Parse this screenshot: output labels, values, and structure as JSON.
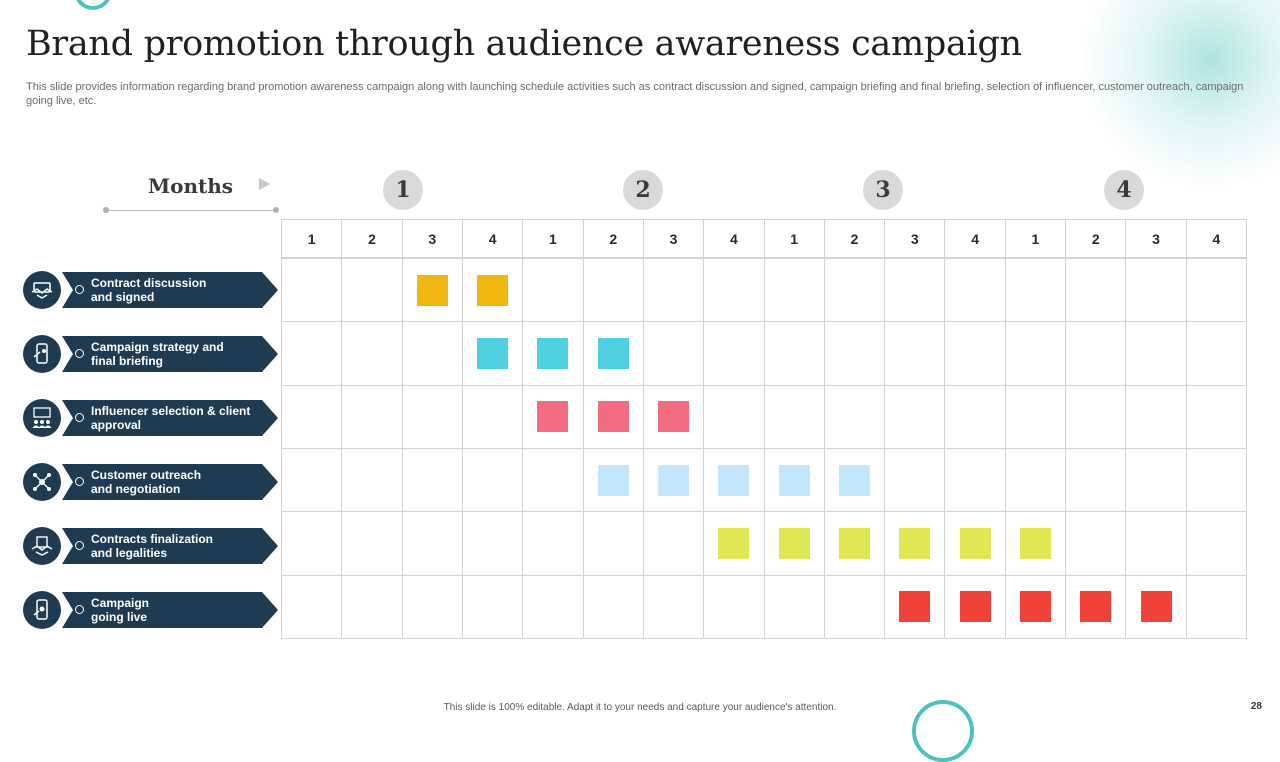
{
  "title": "Brand promotion through audience awareness campaign",
  "subtitle": "This slide provides information regarding brand promotion awareness campaign along with launching schedule activities such as contract discussion and signed, campaign briefing and final briefing, selection of influencer, customer outreach, campaign going live, etc.",
  "months_label": "Months",
  "months": [
    "1",
    "2",
    "3",
    "4"
  ],
  "weeks": [
    "1",
    "2",
    "3",
    "4",
    "1",
    "2",
    "3",
    "4",
    "1",
    "2",
    "3",
    "4",
    "1",
    "2",
    "3",
    "4"
  ],
  "tasks": [
    {
      "label": "Contract discussion\nand signed",
      "icon": "handshake-icon",
      "color": "#f2b610",
      "weeks": [
        3,
        4
      ]
    },
    {
      "label": "Campaign strategy and\nfinal briefing",
      "icon": "mobile-strategy-icon",
      "color": "#4fd0e0",
      "weeks": [
        4,
        5,
        6
      ]
    },
    {
      "label": "Influencer selection & client\napproval",
      "icon": "influencer-team-icon",
      "color": "#f16c7f",
      "weeks": [
        5,
        6,
        7
      ]
    },
    {
      "label": "Customer outreach\nand negotiation",
      "icon": "network-outreach-icon",
      "color": "#c2e6fa",
      "weeks": [
        6,
        7,
        8,
        9,
        10
      ]
    },
    {
      "label": "Contracts finalization\nand legalities",
      "icon": "agreement-icon",
      "color": "#dfe852",
      "weeks": [
        8,
        9,
        10,
        11,
        12,
        13
      ]
    },
    {
      "label": "Campaign\ngoing live",
      "icon": "phone-live-icon",
      "color": "#f0413a",
      "weeks": [
        11,
        12,
        13,
        14,
        15
      ]
    }
  ],
  "footer": "This slide is 100% editable. Adapt it to your needs and capture your audience's attention.",
  "page_number": "28"
}
